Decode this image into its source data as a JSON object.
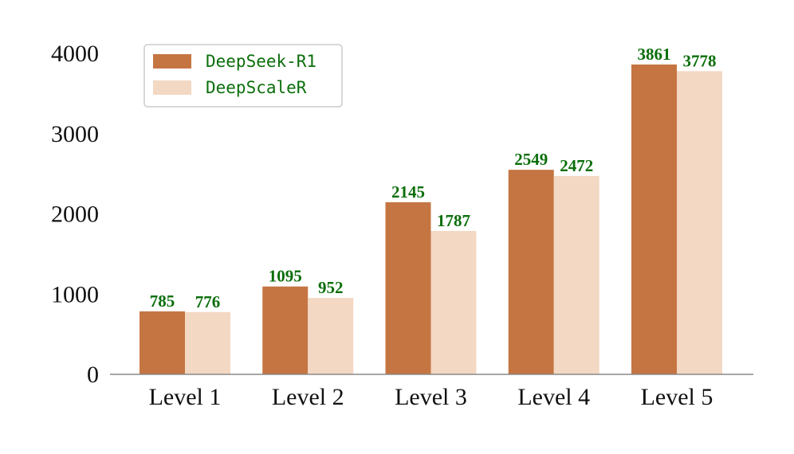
{
  "chart_data": {
    "type": "bar",
    "title": "",
    "xlabel": "",
    "ylabel": "",
    "categories": [
      "Level 1",
      "Level 2",
      "Level 3",
      "Level 4",
      "Level 5"
    ],
    "series": [
      {
        "name": "DeepSeek-R1",
        "values": [
          785,
          1095,
          2145,
          2549,
          3861
        ],
        "color": "#C57542"
      },
      {
        "name": "DeepScaleR",
        "values": [
          776,
          952,
          1787,
          2472,
          3778
        ],
        "color": "#F3D8C3"
      }
    ],
    "ylim": [
      0,
      4000
    ],
    "yticks": [
      "0",
      "1000",
      "2000",
      "3000",
      "4000"
    ],
    "grid": false,
    "legend_position": "top-left",
    "label_color": "#0B6E0B",
    "axis_color": "#888888"
  }
}
